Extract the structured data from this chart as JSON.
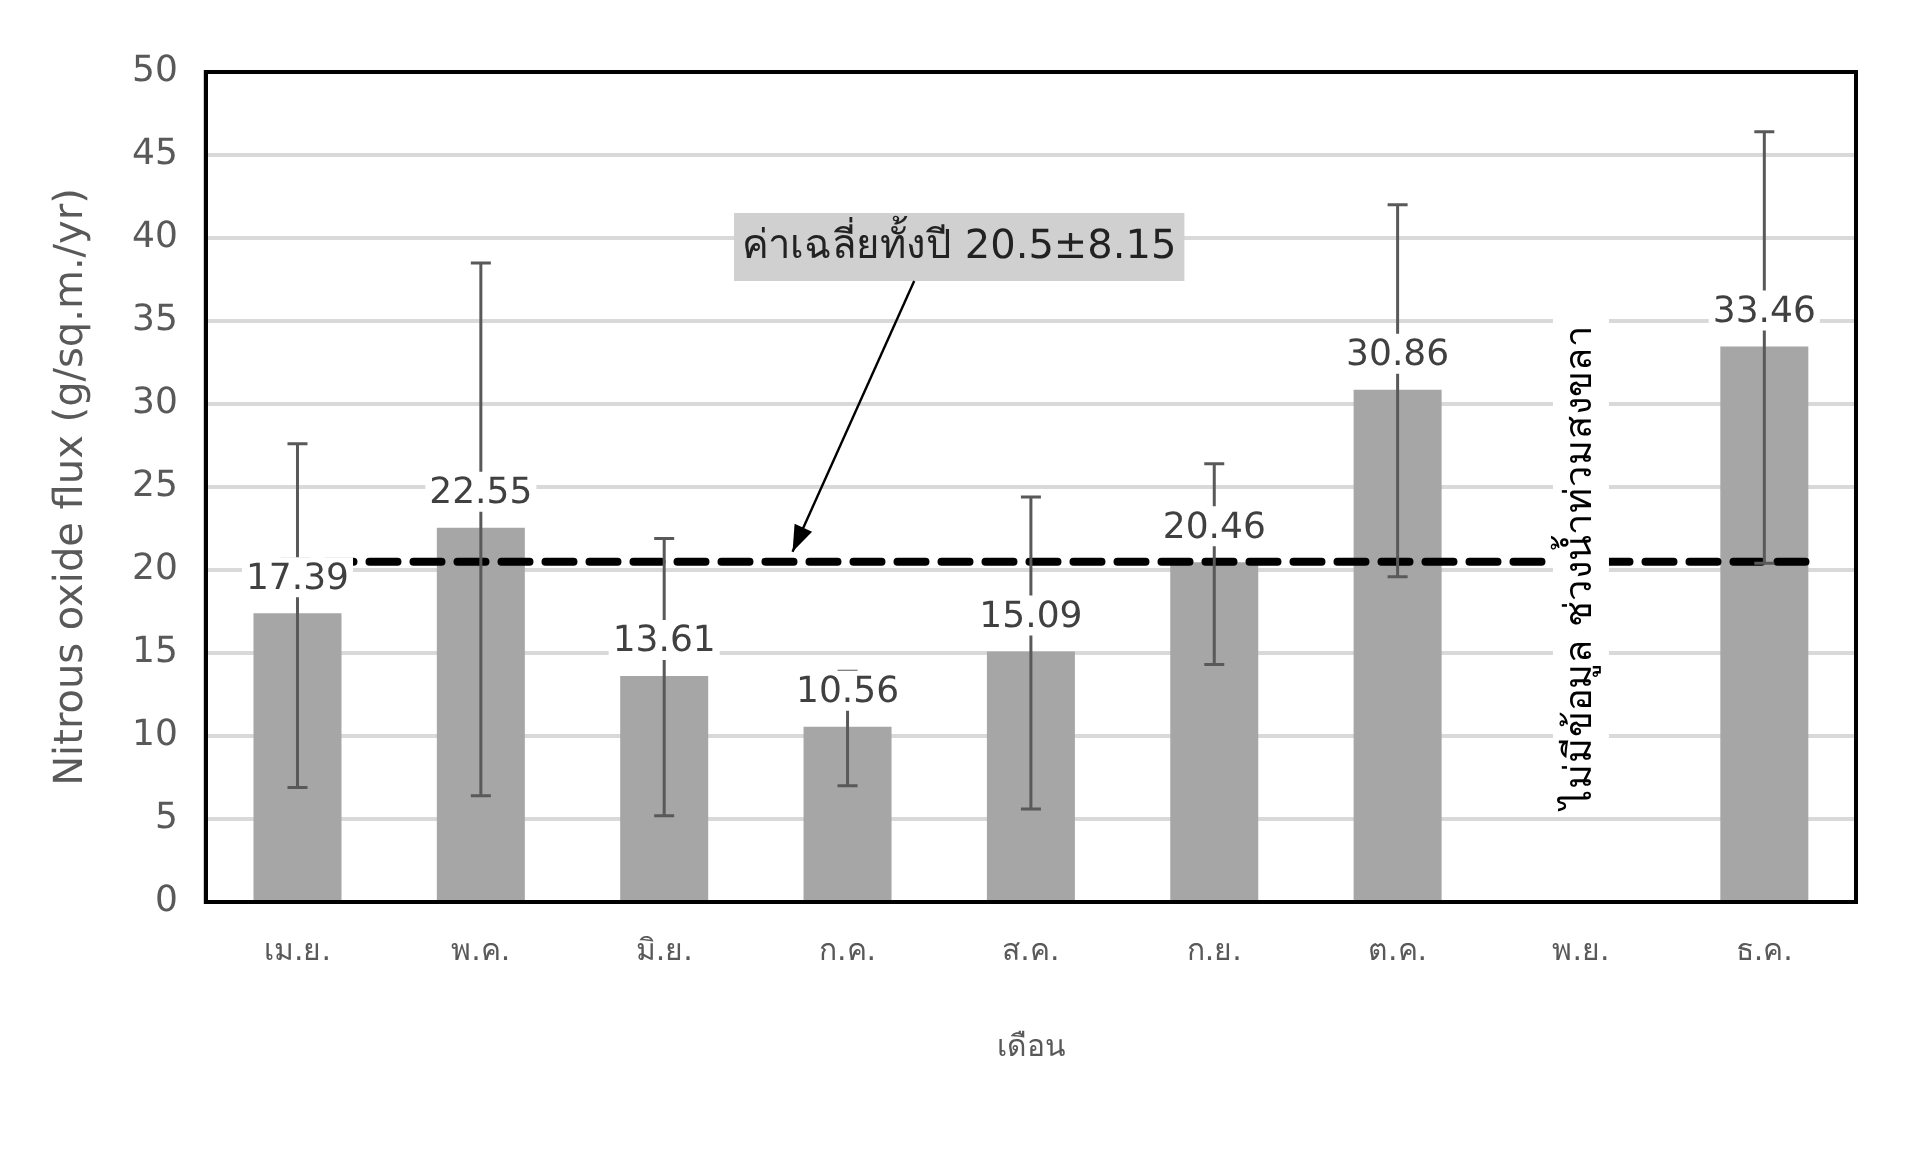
{
  "chart_data": {
    "type": "bar",
    "xlabel": "เดือน",
    "ylabel": "Nitrous oxide flux (g/sq.m./yr)",
    "categories": [
      "เม.ย.",
      "พ.ค.",
      "มิ.ย.",
      "ก.ค.",
      "ส.ค.",
      "ก.ย.",
      "ต.ค.",
      "พ.ย.",
      "ธ.ค."
    ],
    "values": [
      17.39,
      22.55,
      13.61,
      10.56,
      15.09,
      20.46,
      30.86,
      null,
      33.46
    ],
    "errors": [
      [
        6.9,
        27.6
      ],
      [
        6.4,
        38.5
      ],
      [
        5.2,
        21.9
      ],
      [
        7.0,
        13.9
      ],
      [
        5.6,
        24.4
      ],
      [
        14.3,
        26.4
      ],
      [
        19.6,
        42.0
      ],
      null,
      [
        20.4,
        46.4
      ]
    ],
    "color": "#a6a6a6",
    "data_labels": true,
    "ylim": [
      0,
      50
    ],
    "yticks": [
      0,
      5,
      10,
      15,
      20,
      25,
      30,
      35,
      40,
      45,
      50
    ],
    "grid": "y",
    "legend": false,
    "ref_lines": [
      {
        "axis": "y",
        "value": 20.5,
        "label": "ค่าเฉลี่ยทั้งปี 20.5±8.15",
        "color": "#000000",
        "line_style": "dashed"
      }
    ],
    "annotations": [
      "ไม่มีข้อมูล ช่วงน้ำท่วมสงขลา"
    ]
  }
}
